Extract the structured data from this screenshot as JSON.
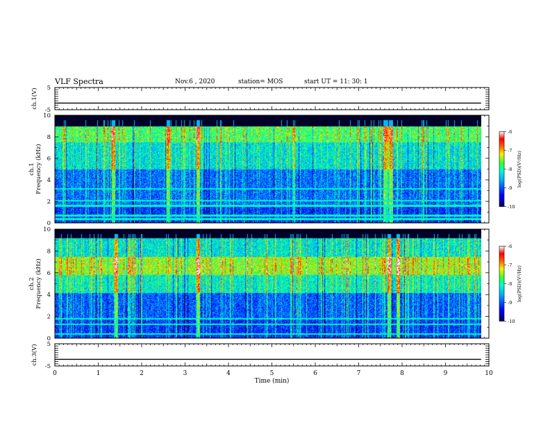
{
  "header": {
    "title": "VLF Spectra",
    "date": "Nov.6 , 2020",
    "station": "station= MOS",
    "start": "start UT = 11: 30: 1"
  },
  "colors": {
    "background": "#ffffff",
    "spectrogram_floor": "#000040",
    "colormap": [
      "#000066",
      "#0000ff",
      "#00aaff",
      "#00ffcc",
      "#33ff33",
      "#ffee00",
      "#ff6600",
      "#ff0000",
      "#ffffff"
    ]
  },
  "chart_data": [
    {
      "type": "line",
      "panel": "ch.1 waveform",
      "ylabel": "ch.1(V)",
      "ylim": [
        -5,
        5
      ],
      "yticks": [
        "5",
        "-5"
      ],
      "x": [
        0,
        9.82
      ],
      "values": [
        -2,
        -2
      ]
    },
    {
      "type": "heatmap",
      "panel": "ch.1 spectrogram",
      "ylabel": "ch.1 Frequency (kHz)",
      "ylim": [
        0,
        10
      ],
      "yticks": [
        "0",
        "2",
        "4",
        "6",
        "8",
        "10"
      ],
      "xlim": [
        0,
        10
      ],
      "data_extent_min": 9.82,
      "colorbar": {
        "label": "log(PSD)(V²/Hz)",
        "range": [
          -10,
          -6
        ],
        "ticks": [
          "-6",
          "-7",
          "-8",
          "-9",
          "-10"
        ]
      },
      "bands": [
        {
          "kHz": [
            0,
            1.7
          ],
          "level": -9.3
        },
        {
          "kHz": [
            1.7,
            5.0
          ],
          "level": -9.0
        },
        {
          "kHz": [
            5.0,
            7.5
          ],
          "level": -8.4
        },
        {
          "kHz": [
            7.5,
            9.0
          ],
          "level": -7.9
        },
        {
          "kHz": [
            9.0,
            10
          ],
          "level": -10
        }
      ],
      "lines_kHz": [
        0.4,
        0.7,
        1.6,
        2.1,
        3.2
      ],
      "strong_bursts_min": [
        1.35,
        2.6,
        3.3,
        7.6,
        7.75
      ]
    },
    {
      "type": "heatmap",
      "panel": "ch.2 spectrogram",
      "ylabel": "ch.2 Frequency (kHz)",
      "ylim": [
        0,
        10
      ],
      "yticks": [
        "0",
        "2",
        "4",
        "6",
        "8",
        "10"
      ],
      "xlim": [
        0,
        10
      ],
      "data_extent_min": 9.82,
      "colorbar": {
        "label": "log(PSD)(V²/Hz)",
        "range": [
          -10,
          -6
        ],
        "ticks": [
          "-6",
          "-7",
          "-8",
          "-9",
          "-10"
        ]
      },
      "bands": [
        {
          "kHz": [
            0,
            1.7
          ],
          "level": -9.3
        },
        {
          "kHz": [
            1.7,
            4.2
          ],
          "level": -9.1
        },
        {
          "kHz": [
            4.2,
            5.8
          ],
          "level": -8.3
        },
        {
          "kHz": [
            5.8,
            7.5
          ],
          "level": -7.6
        },
        {
          "kHz": [
            7.5,
            9.2
          ],
          "level": -8.4
        },
        {
          "kHz": [
            9.2,
            10
          ],
          "level": -10
        }
      ],
      "lines_kHz": [
        0.4,
        1.3,
        1.8
      ],
      "strong_bursts_min": [
        1.4,
        3.3,
        7.7,
        7.9
      ]
    },
    {
      "type": "line",
      "panel": "ch.3 waveform",
      "ylabel": "ch.3(V)",
      "ylim": [
        -5,
        5
      ],
      "yticks": [
        "5",
        "-5"
      ],
      "x": [
        0,
        9.82
      ],
      "values": [
        -2,
        -2
      ]
    }
  ],
  "xaxis": {
    "label": "Time (min)",
    "range": [
      0,
      10
    ],
    "ticks": [
      "0",
      "1",
      "2",
      "3",
      "4",
      "5",
      "6",
      "7",
      "8",
      "9",
      "10"
    ]
  }
}
